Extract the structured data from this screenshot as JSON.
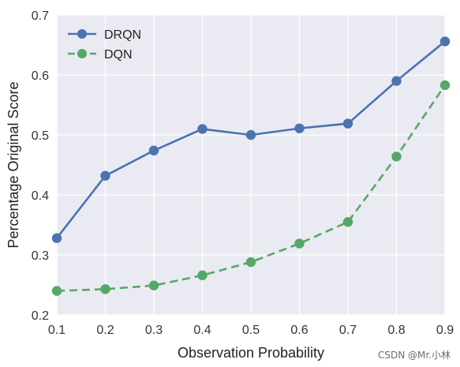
{
  "chart_data": {
    "type": "line",
    "xlabel": "Observation Probability",
    "ylabel": "Percentage Original Score",
    "xlim": [
      0.1,
      0.9
    ],
    "ylim": [
      0.2,
      0.7
    ],
    "x_ticks": [
      "0.1",
      "0.2",
      "0.3",
      "0.4",
      "0.5",
      "0.6",
      "0.7",
      "0.8",
      "0.9"
    ],
    "y_ticks": [
      "0.2",
      "0.3",
      "0.4",
      "0.5",
      "0.6",
      "0.7"
    ],
    "grid": true,
    "legend_position": "top-left",
    "x": [
      0.1,
      0.2,
      0.3,
      0.4,
      0.5,
      0.6,
      0.7,
      0.8,
      0.9
    ],
    "series": [
      {
        "name": "DRQN",
        "values": [
          0.328,
          0.432,
          0.474,
          0.51,
          0.5,
          0.511,
          0.519,
          0.59,
          0.656
        ],
        "color": "#4c72b0",
        "style": "solid"
      },
      {
        "name": "DQN",
        "values": [
          0.24,
          0.243,
          0.249,
          0.266,
          0.288,
          0.319,
          0.355,
          0.464,
          0.583
        ],
        "color": "#55a868",
        "style": "dashed"
      }
    ]
  },
  "watermark": "CSDN @Mr.小林"
}
